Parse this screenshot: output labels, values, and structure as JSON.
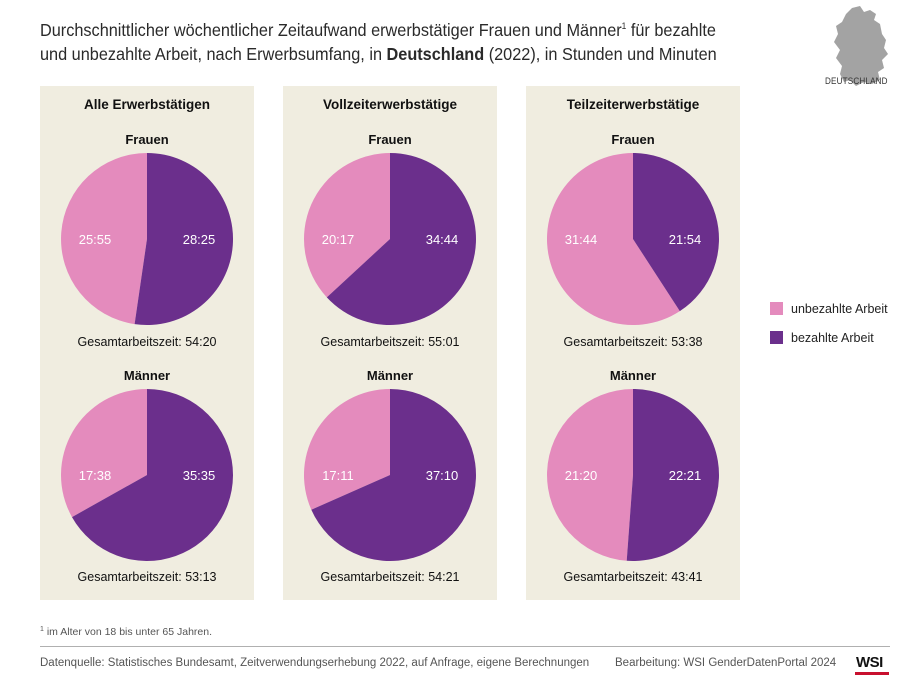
{
  "header": {
    "title_line1_part1": "Durchschnittlicher wöchentlicher Zeitaufwand erwerbstätiger Frauen und Männer",
    "title_footnote_mark": "1",
    "title_line1_part2": " für bezahlte",
    "title_line2_part1": "und unbezahlte Arbeit, nach Erwerbsumfang, in ",
    "title_country_bold": "Deutschland",
    "title_line2_part2": " (2022), in Stunden und Minuten",
    "country_label": "DEUTSCHLAND"
  },
  "legend": {
    "unpaid_label": "unbezahlte Arbeit",
    "paid_label": "bezahlte Arbeit"
  },
  "colors": {
    "unpaid": "#e48bbd",
    "paid": "#6b2f8c",
    "panel": "#f0ede0",
    "country_map": "#a3a3a3"
  },
  "chart_data": {
    "type": "pie",
    "value_unit": "Stunden:Minuten pro Woche",
    "series_names": [
      "unbezahlte Arbeit",
      "bezahlte Arbeit"
    ],
    "panels": [
      {
        "title": "Alle Erwerbstätigen",
        "pies": [
          {
            "label": "Frauen",
            "unpaid": "25:55",
            "paid": "28:25",
            "unpaid_minutes": 1555,
            "paid_minutes": 1705,
            "total_label": "Gesamtarbeitszeit: 54:20"
          },
          {
            "label": "Männer",
            "unpaid": "17:38",
            "paid": "35:35",
            "unpaid_minutes": 1058,
            "paid_minutes": 2135,
            "total_label": "Gesamtarbeitszeit: 53:13"
          }
        ]
      },
      {
        "title": "Vollzeiterwerbstätige",
        "pies": [
          {
            "label": "Frauen",
            "unpaid": "20:17",
            "paid": "34:44",
            "unpaid_minutes": 1217,
            "paid_minutes": 2084,
            "total_label": "Gesamtarbeitszeit: 55:01"
          },
          {
            "label": "Männer",
            "unpaid": "17:11",
            "paid": "37:10",
            "unpaid_minutes": 1031,
            "paid_minutes": 2230,
            "total_label": "Gesamtarbeitszeit: 54:21"
          }
        ]
      },
      {
        "title": "Teilzeiterwerbstätige",
        "pies": [
          {
            "label": "Frauen",
            "unpaid": "31:44",
            "paid": "21:54",
            "unpaid_minutes": 1904,
            "paid_minutes": 1314,
            "total_label": "Gesamtarbeitszeit: 53:38"
          },
          {
            "label": "Männer",
            "unpaid": "21:20",
            "paid": "22:21",
            "unpaid_minutes": 1280,
            "paid_minutes": 1341,
            "total_label": "Gesamtarbeitszeit: 43:41"
          }
        ]
      }
    ]
  },
  "footer": {
    "footnote_mark": "1",
    "footnote_text": " im Alter von 18 bis unter 65 Jahren.",
    "source": "Datenquelle: Statistisches Bundesamt, Zeitverwendungserhebung 2022, auf Anfrage, eigene Berechnungen",
    "credit": "Bearbeitung: WSI GenderDatenPortal 2024",
    "logo_text": "WSI"
  }
}
